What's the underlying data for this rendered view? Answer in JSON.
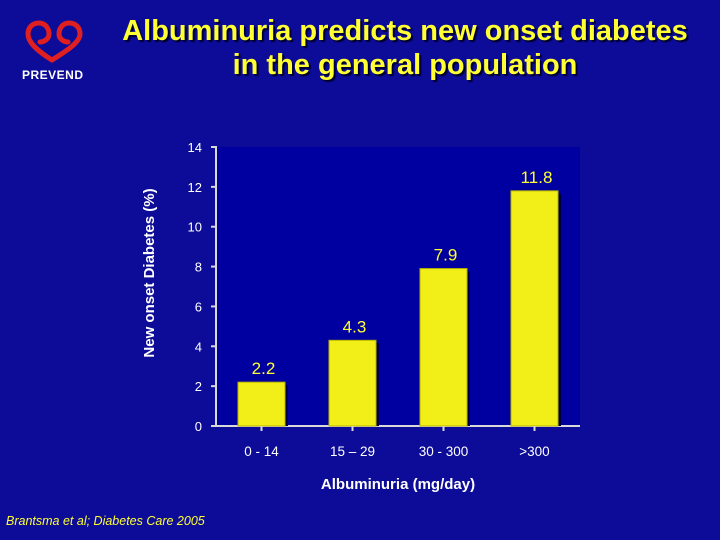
{
  "header": {
    "title_line1": "Albuminuria predicts new onset diabetes",
    "title_line2": "in the general population",
    "brand": "PREVEND"
  },
  "citation": "Brantsma et al; Diabetes Care 2005",
  "colors": {
    "background": "#0c0c98",
    "title": "#ffff33",
    "bar": "#f2ee18",
    "plot_area": "#0000a0",
    "logo": "#e02020"
  },
  "chart_data": {
    "type": "bar",
    "categories": [
      "0 - 14",
      "15 – 29",
      "30 - 300",
      ">300"
    ],
    "values": [
      2.2,
      4.3,
      7.9,
      11.8
    ],
    "value_labels": [
      "2.2",
      "4.3",
      "7.9",
      "11.8"
    ],
    "ylabel": "New onset Diabetes (%)",
    "xlabel": "Albuminuria (mg/day)",
    "ylim": [
      0,
      14
    ],
    "yticks": [
      0,
      2,
      4,
      6,
      8,
      10,
      12,
      14
    ],
    "grid": false
  }
}
